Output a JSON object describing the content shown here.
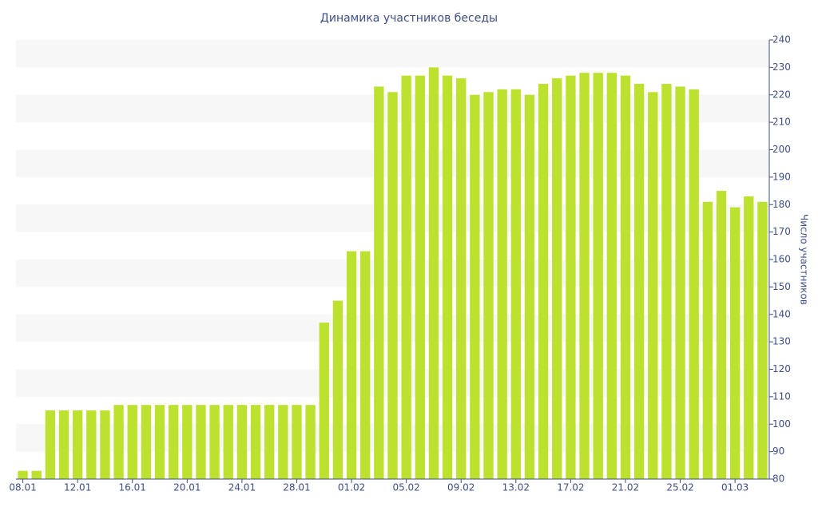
{
  "chart_data": {
    "type": "bar",
    "title": "Динамика участников беседы",
    "y_label": "Число участников",
    "categories": [
      "08.01",
      null,
      null,
      null,
      "12.01",
      null,
      null,
      null,
      "16.01",
      null,
      null,
      null,
      "20.01",
      null,
      null,
      null,
      "24.01",
      null,
      null,
      null,
      "28.01",
      null,
      null,
      null,
      "01.02",
      null,
      null,
      null,
      "05.02",
      null,
      null,
      null,
      "09.02",
      null,
      null,
      null,
      "13.02",
      null,
      null,
      null,
      "17.02",
      null,
      null,
      null,
      "21.02",
      null,
      null,
      null,
      "25.02",
      null,
      null,
      null,
      "01.03",
      null,
      null
    ],
    "values": [
      83,
      83,
      105,
      105,
      105,
      105,
      105,
      107,
      107,
      107,
      107,
      107,
      107,
      107,
      107,
      107,
      107,
      107,
      107,
      107,
      107,
      107,
      137,
      145,
      163,
      163,
      223,
      221,
      227,
      227,
      230,
      227,
      226,
      220,
      221,
      222,
      222,
      220,
      224,
      226,
      227,
      228,
      228,
      228,
      227,
      224,
      221,
      224,
      223,
      222,
      181,
      185,
      179,
      183,
      181
    ],
    "color": "#bde12f",
    "ylim": [
      80,
      240
    ],
    "yticks": [
      80,
      90,
      100,
      110,
      120,
      130,
      140,
      150,
      160,
      170,
      180,
      190,
      200,
      210,
      220,
      230,
      240
    ],
    "grid": "bands",
    "y_axis_side": "right"
  }
}
